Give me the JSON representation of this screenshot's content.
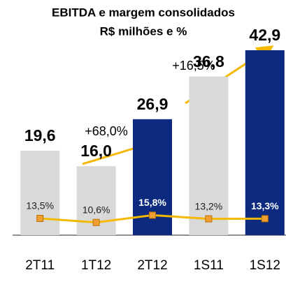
{
  "chart_data": {
    "type": "bar",
    "title": "EBITDA e margem consolidados",
    "subtitle": "R$ milhões e %",
    "categories": [
      "2T11",
      "1T12",
      "2T12",
      "1S11",
      "1S12"
    ],
    "series": [
      {
        "type": "bar",
        "colors": [
          "#d9d9d9",
          "#d9d9d9",
          "#0b2a80",
          "#d9d9d9",
          "#0b2a80"
        ],
        "values": [
          19.6,
          16.0,
          26.9,
          36.8,
          42.9
        ],
        "value_labels": [
          "19,6",
          "16,0",
          "26,9",
          "36,8",
          "42,9"
        ]
      },
      {
        "type": "line",
        "axis": "y2",
        "color": "#f5b800",
        "marker_color": "#f0a030",
        "values": [
          13.5,
          10.6,
          15.8,
          13.2,
          13.3
        ],
        "value_labels": [
          "13,5%",
          "10,6%",
          "15,8%",
          "13,2%",
          "13,3%"
        ]
      }
    ],
    "annotations": [
      "+68,0%",
      "+16,5%"
    ]
  }
}
